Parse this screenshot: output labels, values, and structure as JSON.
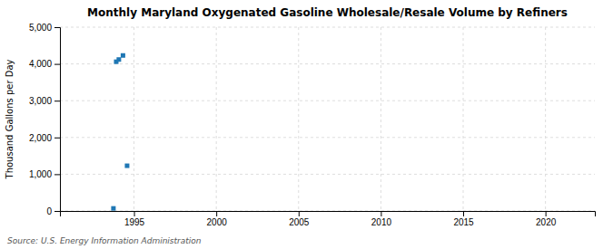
{
  "chart_data": {
    "type": "scatter",
    "title": "Monthly Maryland Oxygenated Gasoline Wholesale/Resale Volume by Refiners",
    "ylabel": "Thousand Gallons per Day",
    "source": "Source: U.S. Energy Information Administration",
    "x": [
      1993.75,
      1993.92,
      1994.08,
      1994.33,
      1994.58
    ],
    "values": [
      70,
      4060,
      4120,
      4230,
      1230
    ],
    "marker": "square",
    "xlim": [
      1990.5,
      2023
    ],
    "xticks": [
      1995,
      2000,
      2005,
      2010,
      2015,
      2020
    ],
    "ylim": [
      0,
      5000
    ],
    "yticks": [
      0,
      {
        "value": 1000,
        "label": "1,000"
      },
      {
        "value": 2000,
        "label": "2,000"
      },
      {
        "value": 3000,
        "label": "3,000"
      },
      {
        "value": 4000,
        "label": "4,000"
      },
      {
        "value": 5000,
        "label": "5,000"
      }
    ],
    "grid": true
  }
}
